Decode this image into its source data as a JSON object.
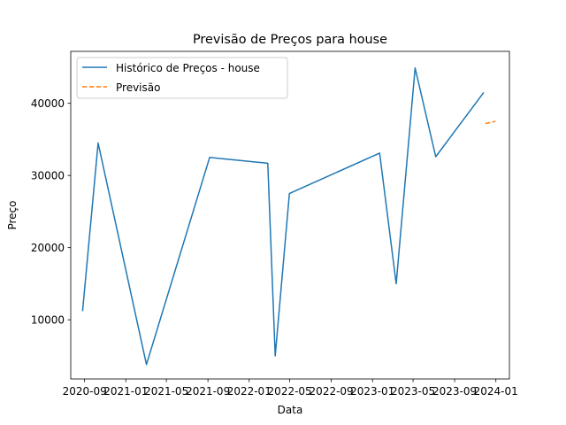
{
  "chart_data": {
    "type": "line",
    "title": "Previsão de Preços para house",
    "xlabel": "Data",
    "ylabel": "Preço",
    "x_tick_labels": [
      "2020-09",
      "2021-01",
      "2021-05",
      "2021-09",
      "2022-01",
      "2022-05",
      "2022-09",
      "2023-01",
      "2023-05",
      "2023-09",
      "2024-01"
    ],
    "x_ticks": [
      "2020-09-01",
      "2021-01-01",
      "2021-05-01",
      "2021-09-01",
      "2022-01-01",
      "2022-05-01",
      "2022-09-01",
      "2023-01-01",
      "2023-05-01",
      "2023-09-01",
      "2024-01-01"
    ],
    "y_ticks": [
      10000,
      20000,
      30000,
      40000
    ],
    "y_tick_labels": [
      "10000",
      "20000",
      "30000",
      "40000"
    ],
    "xlim": [
      "2020-07-22",
      "2024-02-10"
    ],
    "ylim": [
      1800,
      47200
    ],
    "grid": false,
    "legend_position": "top-left",
    "series": [
      {
        "name": "Histórico de Preços - house",
        "color": "#1f77b4",
        "style": "solid",
        "points": [
          {
            "x": "2020-08-26",
            "y": 11200
          },
          {
            "x": "2020-10-11",
            "y": 34500
          },
          {
            "x": "2021-03-03",
            "y": 3800
          },
          {
            "x": "2021-09-06",
            "y": 32500
          },
          {
            "x": "2022-02-25",
            "y": 31700
          },
          {
            "x": "2022-03-19",
            "y": 5000
          },
          {
            "x": "2022-04-30",
            "y": 27500
          },
          {
            "x": "2023-01-22",
            "y": 33100
          },
          {
            "x": "2023-03-12",
            "y": 15000
          },
          {
            "x": "2023-05-07",
            "y": 44900
          },
          {
            "x": "2023-07-07",
            "y": 32600
          },
          {
            "x": "2023-11-26",
            "y": 41500
          }
        ]
      },
      {
        "name": "Previsão",
        "color": "#ff7f0e",
        "style": "dashed",
        "points": [
          {
            "x": "2023-12-01",
            "y": 37200
          },
          {
            "x": "2023-12-31",
            "y": 37500
          }
        ]
      }
    ]
  }
}
